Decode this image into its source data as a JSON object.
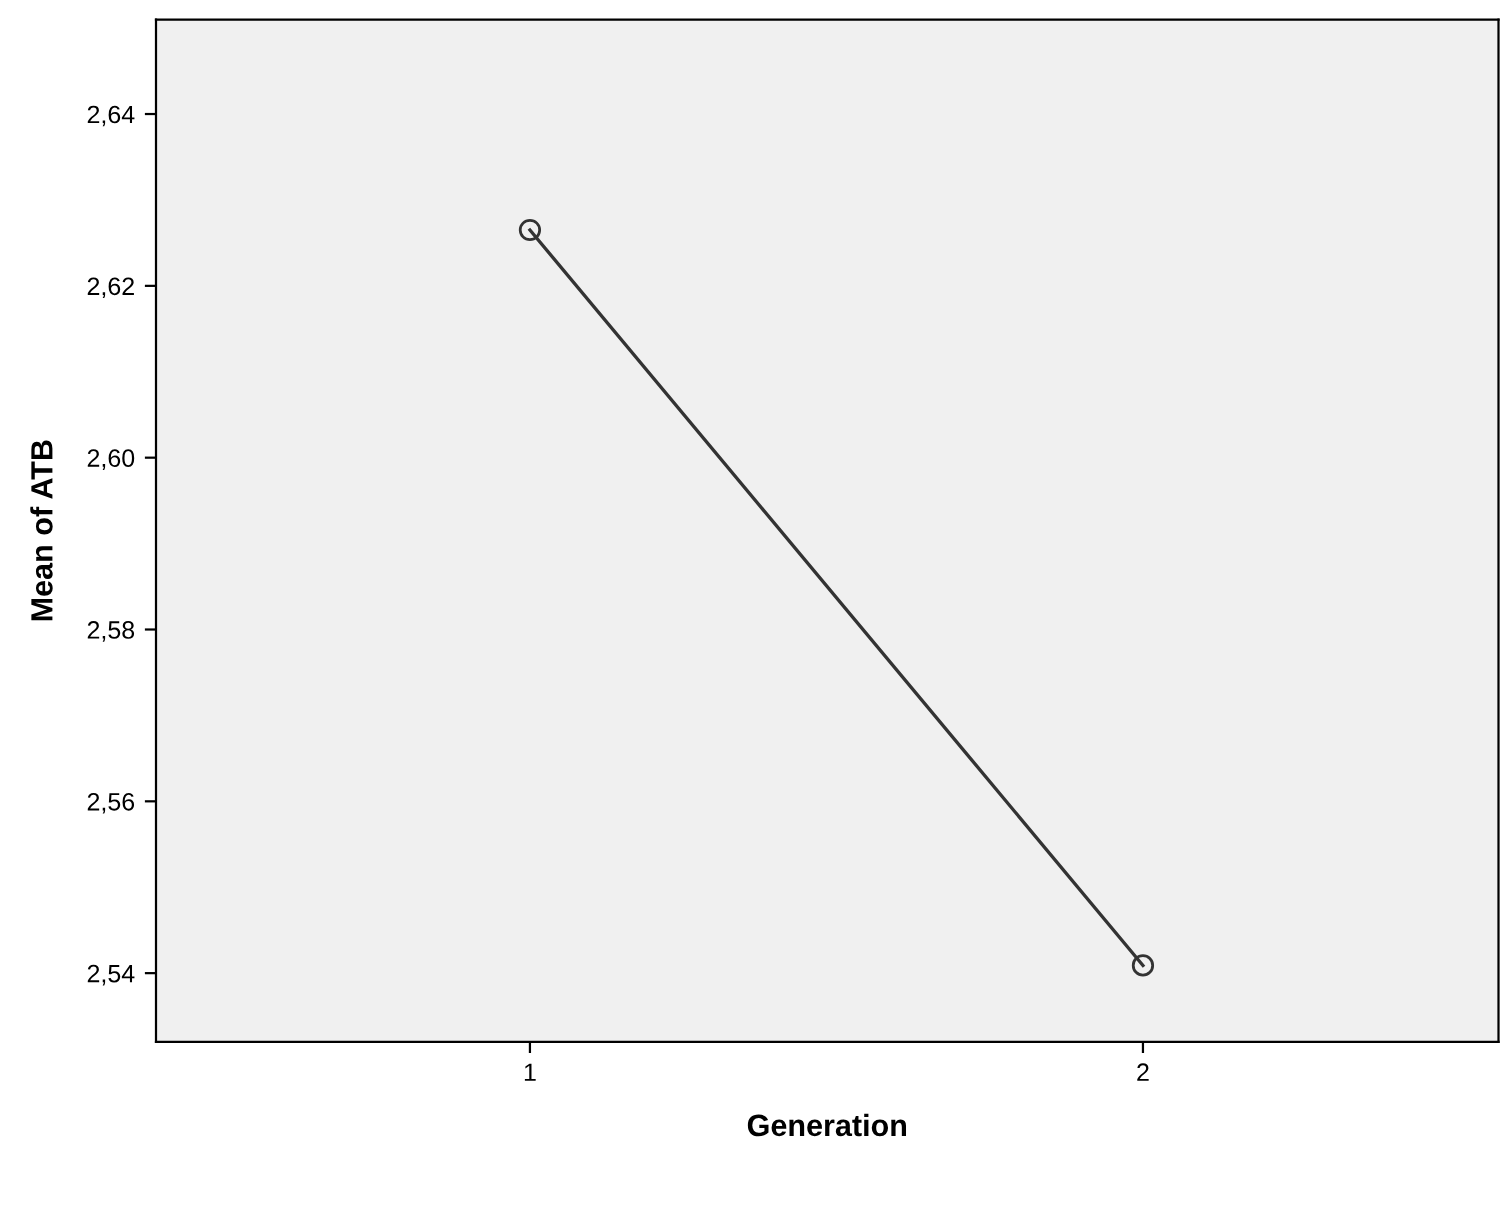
{
  "chart_data": {
    "type": "line",
    "xlabel": "Generation",
    "ylabel": "Mean of ATB",
    "categories": [
      "1",
      "2"
    ],
    "series": [
      {
        "color": "#333333",
        "values": [
          2.6265,
          2.5409
        ]
      }
    ],
    "ylim": [
      2.532,
      2.651
    ],
    "yticks": [
      {
        "value": 2.54,
        "label": "2,54"
      },
      {
        "value": 2.56,
        "label": "2,56"
      },
      {
        "value": 2.58,
        "label": "2,58"
      },
      {
        "value": 2.6,
        "label": "2,60"
      },
      {
        "value": 2.62,
        "label": "2,62"
      },
      {
        "value": 2.64,
        "label": "2,64"
      }
    ],
    "marker": "circle",
    "line_style": "solid",
    "grid": false,
    "legend": false
  }
}
